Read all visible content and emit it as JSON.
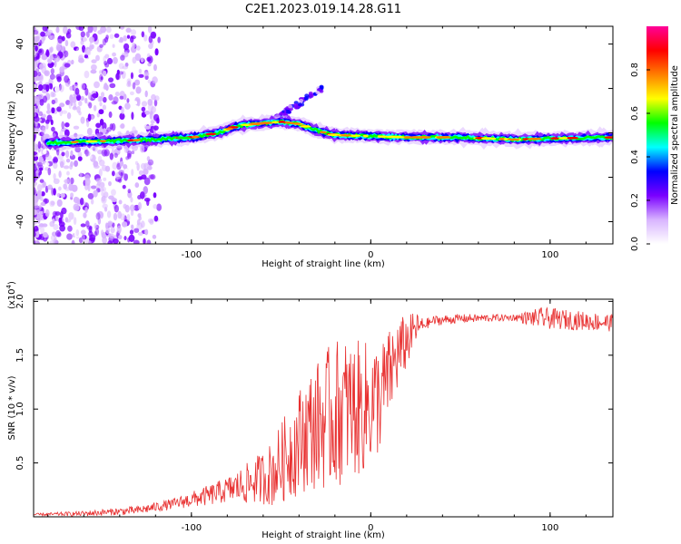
{
  "title": "C2E1.2023.019.14.28.G11",
  "chart_data": [
    {
      "type": "heatmap",
      "xlabel": "Height of straight line (km)",
      "ylabel": "Frequency (Hz)",
      "xlim": [
        -188,
        135
      ],
      "ylim": [
        -50,
        48
      ],
      "x_ticks": [
        -100,
        0,
        100
      ],
      "x_tick_labels": [
        "-100",
        "0",
        "100"
      ],
      "y_ticks": [
        -40,
        -20,
        0,
        20,
        40
      ],
      "y_tick_labels": [
        "-40",
        "-20",
        "0",
        "20",
        "40"
      ],
      "colorbar": {
        "label": "Normalized spectral amplitude",
        "range": [
          0,
          1
        ],
        "ticks": [
          0.0,
          0.2,
          0.4,
          0.6,
          0.8
        ],
        "tick_labels": [
          "0.0",
          "0.2",
          "0.4",
          "0.6",
          "0.8"
        ],
        "colors": [
          "#ffffff",
          "#d8b4ff",
          "#7a00ff",
          "#0000ff",
          "#00ffff",
          "#00ff00",
          "#ffff00",
          "#ff7f00",
          "#ff0000",
          "#ff0099"
        ]
      },
      "ridge": [
        {
          "x": -180,
          "y": -4.5
        },
        {
          "x": -160,
          "y": -4
        },
        {
          "x": -140,
          "y": -3.5
        },
        {
          "x": -120,
          "y": -3
        },
        {
          "x": -100,
          "y": -2
        },
        {
          "x": -85,
          "y": 0
        },
        {
          "x": -75,
          "y": 3
        },
        {
          "x": -65,
          "y": 4
        },
        {
          "x": -50,
          "y": 5
        },
        {
          "x": -40,
          "y": 4
        },
        {
          "x": -30,
          "y": 1
        },
        {
          "x": -20,
          "y": -1
        },
        {
          "x": 0,
          "y": -1.5
        },
        {
          "x": 20,
          "y": -2
        },
        {
          "x": 50,
          "y": -2
        },
        {
          "x": 80,
          "y": -3
        },
        {
          "x": 100,
          "y": -2.5
        },
        {
          "x": 135,
          "y": -2
        }
      ]
    },
    {
      "type": "line",
      "xlabel": "Height of straight line (km)",
      "ylabel": "SNR (10 * v/v)",
      "y_scale_label": "(x10",
      "y_scale_exp": "4",
      "xlim": [
        -188,
        135
      ],
      "ylim": [
        0,
        2.02
      ],
      "x_ticks": [
        -100,
        0,
        100
      ],
      "x_tick_labels": [
        "-100",
        "0",
        "100"
      ],
      "y_ticks": [
        0.5,
        1.0,
        1.5,
        2.0
      ],
      "y_tick_labels": [
        "0.5",
        "1.0",
        "1.5",
        "2.0"
      ],
      "color": "#e83030",
      "envelope": [
        {
          "x": -188,
          "y": 0.02
        },
        {
          "x": -160,
          "y": 0.03
        },
        {
          "x": -130,
          "y": 0.06
        },
        {
          "x": -110,
          "y": 0.12
        },
        {
          "x": -90,
          "y": 0.2
        },
        {
          "x": -70,
          "y": 0.3
        },
        {
          "x": -55,
          "y": 0.4
        },
        {
          "x": -45,
          "y": 0.6
        },
        {
          "x": -35,
          "y": 0.8
        },
        {
          "x": -25,
          "y": 0.9
        },
        {
          "x": -15,
          "y": 1.0
        },
        {
          "x": -5,
          "y": 1.0
        },
        {
          "x": 5,
          "y": 1.1
        },
        {
          "x": 15,
          "y": 1.5
        },
        {
          "x": 25,
          "y": 1.75
        },
        {
          "x": 35,
          "y": 1.82
        },
        {
          "x": 50,
          "y": 1.84
        },
        {
          "x": 80,
          "y": 1.85
        },
        {
          "x": 100,
          "y": 1.84
        },
        {
          "x": 135,
          "y": 1.8
        }
      ],
      "noise_amplitude": [
        {
          "x": -188,
          "y": 0.01
        },
        {
          "x": -110,
          "y": 0.05
        },
        {
          "x": -80,
          "y": 0.12
        },
        {
          "x": -60,
          "y": 0.25
        },
        {
          "x": -40,
          "y": 0.5
        },
        {
          "x": -20,
          "y": 0.7
        },
        {
          "x": 0,
          "y": 0.6
        },
        {
          "x": 15,
          "y": 0.35
        },
        {
          "x": 30,
          "y": 0.05
        },
        {
          "x": 80,
          "y": 0.03
        },
        {
          "x": 95,
          "y": 0.1
        },
        {
          "x": 135,
          "y": 0.08
        }
      ]
    }
  ]
}
